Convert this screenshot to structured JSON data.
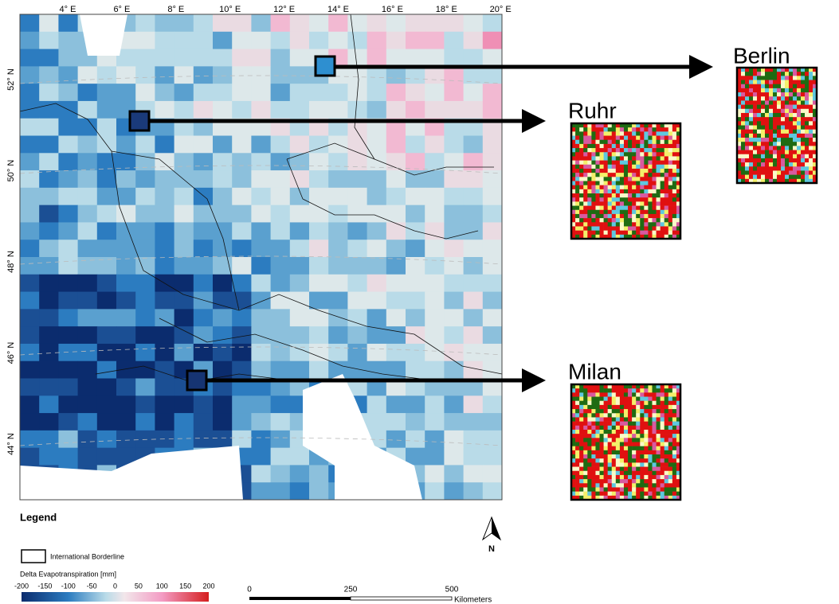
{
  "map": {
    "lon_labels": [
      "4° E",
      "6° E",
      "8° E",
      "10° E",
      "12° E",
      "14° E",
      "16° E",
      "18° E",
      "20° E"
    ],
    "lat_labels": [
      "52° N",
      "50° N",
      "48° N",
      "46° N",
      "44° N"
    ]
  },
  "insets": [
    {
      "label": "Berlin"
    },
    {
      "label": "Ruhr"
    },
    {
      "label": "Milan"
    }
  ],
  "legend": {
    "title": "Legend",
    "border_label": "International Borderline",
    "colorbar_title": "Delta Evapotranspiration [mm]",
    "colorbar_ticks": [
      -200,
      -150,
      -100,
      -50,
      0,
      50,
      100,
      150,
      200
    ]
  },
  "scale_bar": {
    "ticks": [
      0,
      250,
      500
    ],
    "unit": "Kilometers"
  },
  "north": "N"
}
